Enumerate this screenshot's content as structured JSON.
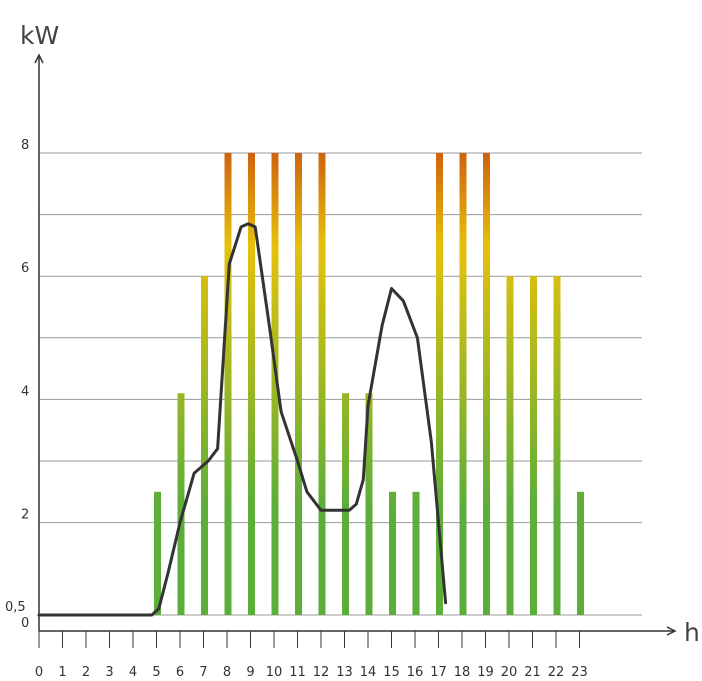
{
  "chart_data": {
    "type": "bar",
    "y_unit": "kW",
    "x_unit": "h",
    "x_ticks": [
      "0",
      "1",
      "2",
      "3",
      "4",
      "5",
      "6",
      "7",
      "8",
      "9",
      "10",
      "11",
      "12",
      "13",
      "14",
      "15",
      "16",
      "17",
      "18",
      "19",
      "20",
      "21",
      "22",
      "23"
    ],
    "y_ticks": [
      {
        "value": 0,
        "label": "0"
      },
      {
        "value": 0.5,
        "label": "0,5"
      },
      {
        "value": 2,
        "label": "2"
      },
      {
        "value": 4,
        "label": "4"
      },
      {
        "value": 6,
        "label": "6"
      },
      {
        "value": 8,
        "label": "8"
      }
    ],
    "gridlines": [
      0.5,
      2,
      3,
      4,
      5,
      6,
      7,
      8
    ],
    "ylim": [
      0,
      9.1
    ],
    "bars": [
      {
        "hour": 5,
        "value": 2.5
      },
      {
        "hour": 6,
        "value": 4.1
      },
      {
        "hour": 7,
        "value": 6.0
      },
      {
        "hour": 8,
        "value": 8.0
      },
      {
        "hour": 9,
        "value": 8.0
      },
      {
        "hour": 10,
        "value": 8.0
      },
      {
        "hour": 11,
        "value": 8.0
      },
      {
        "hour": 12,
        "value": 8.0
      },
      {
        "hour": 13,
        "value": 4.1
      },
      {
        "hour": 14,
        "value": 4.1
      },
      {
        "hour": 15,
        "value": 2.5
      },
      {
        "hour": 16,
        "value": 2.5
      },
      {
        "hour": 17,
        "value": 8.0
      },
      {
        "hour": 18,
        "value": 8.0
      },
      {
        "hour": 19,
        "value": 8.0
      },
      {
        "hour": 20,
        "value": 6.0
      },
      {
        "hour": 21,
        "value": 6.0
      },
      {
        "hour": 22,
        "value": 6.0
      },
      {
        "hour": 23,
        "value": 2.5
      }
    ],
    "line": [
      {
        "x": 0,
        "y": 0.5
      },
      {
        "x": 4.8,
        "y": 0.5
      },
      {
        "x": 5.1,
        "y": 0.6
      },
      {
        "x": 5.5,
        "y": 1.2
      },
      {
        "x": 6.0,
        "y": 2.0
      },
      {
        "x": 6.6,
        "y": 2.8
      },
      {
        "x": 7.2,
        "y": 3.0
      },
      {
        "x": 7.6,
        "y": 3.2
      },
      {
        "x": 8.1,
        "y": 6.2
      },
      {
        "x": 8.6,
        "y": 6.8
      },
      {
        "x": 8.9,
        "y": 6.85
      },
      {
        "x": 9.2,
        "y": 6.8
      },
      {
        "x": 9.8,
        "y": 5.2
      },
      {
        "x": 10.3,
        "y": 3.8
      },
      {
        "x": 11.0,
        "y": 3.0
      },
      {
        "x": 11.4,
        "y": 2.5
      },
      {
        "x": 12.0,
        "y": 2.2
      },
      {
        "x": 13.2,
        "y": 2.2
      },
      {
        "x": 13.5,
        "y": 2.3
      },
      {
        "x": 13.8,
        "y": 2.7
      },
      {
        "x": 14.0,
        "y": 3.9
      },
      {
        "x": 14.6,
        "y": 5.2
      },
      {
        "x": 15.0,
        "y": 5.8
      },
      {
        "x": 15.5,
        "y": 5.6
      },
      {
        "x": 15.9,
        "y": 5.2
      },
      {
        "x": 16.1,
        "y": 5.0
      },
      {
        "x": 16.7,
        "y": 3.3
      },
      {
        "x": 17.3,
        "y": 0.7
      }
    ],
    "colors": {
      "bar_low": "#5cae3a",
      "bar_mid": "#e6c10a",
      "bar_high": "#c84310",
      "line": "#333333",
      "grid": "#9a9a9a",
      "axis": "#333333"
    }
  }
}
